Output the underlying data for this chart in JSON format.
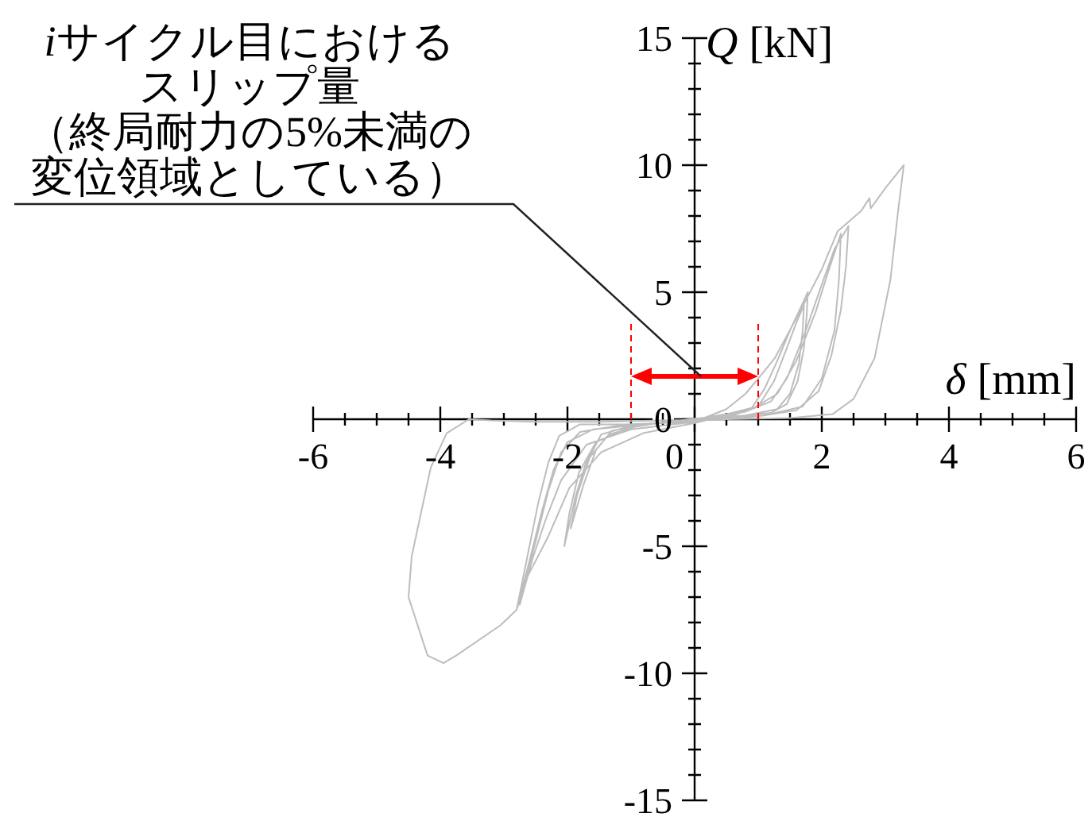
{
  "chart_data": {
    "type": "line",
    "xlabel": "δ [mm]",
    "ylabel": "Q [kN]",
    "annotations": [
      "iサイクル目におけるスリップ量（終局耐力の5%未満の変位領域としている）"
    ],
    "ref_lines": [
      {
        "axis": "x",
        "value": -1,
        "color": "#ff0000",
        "line_style": "dashed"
      },
      {
        "axis": "x",
        "value": 1,
        "color": "#ff0000",
        "line_style": "dashed"
      }
    ],
    "xlim": [
      -6,
      6
    ],
    "ylim": [
      -15,
      15
    ],
    "xticks": [
      -6,
      {
        "value": -5.5,
        "label": null
      },
      {
        "value": -5,
        "label": null
      },
      {
        "value": -4.5,
        "label": null
      },
      -4,
      {
        "value": -3.5,
        "label": null
      },
      {
        "value": -3,
        "label": null
      },
      {
        "value": -2.5,
        "label": null
      },
      -2,
      {
        "value": -1.5,
        "label": null
      },
      {
        "value": -1,
        "label": null
      },
      {
        "value": -0.5,
        "label": null
      },
      0,
      {
        "value": 0.5,
        "label": null
      },
      {
        "value": 1,
        "label": null
      },
      {
        "value": 1.5,
        "label": null
      },
      2,
      {
        "value": 2.5,
        "label": null
      },
      {
        "value": 3,
        "label": null
      },
      {
        "value": 3.5,
        "label": null
      },
      4,
      {
        "value": 4.5,
        "label": null
      },
      {
        "value": 5,
        "label": null
      },
      {
        "value": 5.5,
        "label": null
      },
      6
    ],
    "yticks": [
      -15,
      {
        "value": -14,
        "label": null
      },
      {
        "value": -13,
        "label": null
      },
      {
        "value": -12,
        "label": null
      },
      {
        "value": -11,
        "label": null
      },
      -10,
      {
        "value": -9,
        "label": null
      },
      {
        "value": -8,
        "label": null
      },
      {
        "value": -7,
        "label": null
      },
      {
        "value": -6,
        "label": null
      },
      -5,
      {
        "value": -4,
        "label": null
      },
      {
        "value": -3,
        "label": null
      },
      {
        "value": -2,
        "label": null
      },
      {
        "value": -1,
        "label": null
      },
      0,
      {
        "value": 1,
        "label": null
      },
      {
        "value": 2,
        "label": null
      },
      {
        "value": 3,
        "label": null
      },
      {
        "value": 4,
        "label": null
      },
      5,
      {
        "value": 6,
        "label": null
      },
      {
        "value": 7,
        "label": null
      },
      {
        "value": 8,
        "label": null
      },
      {
        "value": 9,
        "label": null
      },
      10,
      {
        "value": 11,
        "label": null
      },
      {
        "value": 12,
        "label": null
      },
      {
        "value": 13,
        "label": null
      },
      {
        "value": 14,
        "label": null
      },
      15
    ],
    "series": [
      {
        "color": "#bdbdbd",
        "x": [
          0,
          0.5,
          0.9,
          1.1,
          1.3,
          1.5,
          1.65,
          1.78,
          1.76,
          1.72,
          1.62,
          1.45,
          1.2,
          0.6,
          0,
          -0.6,
          -1.06,
          -1.47,
          -1.72,
          -1.88,
          -2.05,
          -1.97,
          -1.82,
          -1.55,
          -1.06,
          -0.5,
          0,
          0.6,
          1.0,
          1.25,
          1.45,
          1.6,
          1.72,
          1.7,
          1.64,
          1.5,
          1.3,
          0.8,
          0,
          -0.8,
          -1.3,
          -1.55,
          -1.75,
          -1.95,
          -1.85,
          -1.65,
          -1.35,
          -0.8,
          0,
          0.8,
          1.2,
          1.45,
          1.75,
          2.0,
          2.2,
          2.42,
          2.38,
          2.3,
          2.15,
          1.95,
          1.6,
          1.0,
          0,
          -1.0,
          -1.6,
          -2.0,
          -2.22,
          -2.4,
          -2.6,
          -2.8,
          -2.63,
          -2.3,
          -1.97,
          -1.47,
          -0.81,
          0,
          0.9,
          1.3,
          1.6,
          1.9,
          2.1,
          2.3,
          2.27,
          2.2,
          2.0,
          1.7,
          1.1,
          0,
          -1.2,
          -1.8,
          -2.1,
          -2.3,
          -2.5,
          -2.75,
          -2.55,
          -2.35,
          -2.1,
          -1.7,
          -1.0,
          0,
          0.5,
          0.8,
          1.0,
          1.26,
          1.67,
          2.0,
          2.25,
          2.62,
          2.75,
          2.77,
          3.0,
          3.29,
          3.2,
          3.08,
          2.83,
          2.5,
          2.17,
          1.5,
          0.5,
          -0.5,
          -1.5,
          -2.5,
          -3.2,
          -3.55,
          -3.9,
          -4.15,
          -4.45,
          -4.5,
          -4.2,
          -3.95,
          -3.75,
          -3.05,
          -2.8,
          -2.63,
          -2.46,
          -2.3,
          -2.13,
          -1.8,
          -1.1,
          -0.5,
          0
        ],
        "values": [
          0,
          0.2,
          0.45,
          1.2,
          2.3,
          3.5,
          4.3,
          5.0,
          4.0,
          2.8,
          1.5,
          0.6,
          0.25,
          0.1,
          -0.05,
          -0.15,
          -0.3,
          -0.6,
          -1.8,
          -3.1,
          -5.0,
          -3.7,
          -2.1,
          -0.9,
          -0.35,
          -0.12,
          0.02,
          0.15,
          0.5,
          1.5,
          2.8,
          3.8,
          4.5,
          3.5,
          2.2,
          1.0,
          0.4,
          0.15,
          0,
          -0.2,
          -0.45,
          -1.2,
          -2.6,
          -4.3,
          -3.0,
          -1.5,
          -0.6,
          -0.2,
          0,
          0.3,
          0.7,
          1.6,
          3.5,
          5.3,
          6.7,
          7.6,
          6.0,
          4.3,
          2.5,
          1.1,
          0.35,
          0.12,
          -0.05,
          -0.25,
          -0.4,
          -0.9,
          -2.0,
          -3.6,
          -5.6,
          -7.5,
          -6.2,
          -4.6,
          -2.7,
          -1.3,
          -0.55,
          -0.15,
          0.4,
          1.0,
          2.3,
          4.2,
          5.8,
          7.3,
          5.5,
          3.5,
          1.6,
          0.5,
          0.15,
          -0.05,
          -0.25,
          -0.5,
          -1.3,
          -2.8,
          -4.8,
          -7.3,
          -5.5,
          -4.0,
          -2.4,
          -1.0,
          -0.4,
          -0.1,
          0.4,
          1.0,
          1.6,
          2.4,
          4.3,
          5.9,
          7.4,
          8.2,
          8.7,
          8.3,
          9.1,
          10.0,
          8.2,
          5.5,
          2.4,
          0.8,
          0.2,
          0.05,
          0,
          -0.05,
          -0.1,
          -0.1,
          -0.05,
          0,
          -0.55,
          -1.9,
          -5.4,
          -7.0,
          -9.3,
          -9.6,
          -9.3,
          -8.1,
          -7.5,
          -5.4,
          -3.3,
          -1.7,
          -0.65,
          -0.2,
          -0.2,
          -0.15,
          -0.1
        ]
      }
    ]
  }
}
